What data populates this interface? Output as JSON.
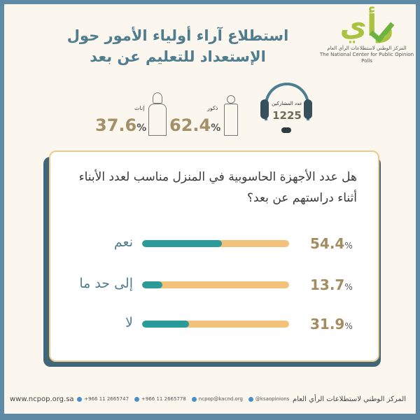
{
  "logo": {
    "mark": "رأي",
    "name_ar": "المركز الوطني لاستطلاعات الرأي العام",
    "name_en": "The National Center for Public Opinion Polls"
  },
  "title": {
    "line1": "استطلاع آراء أولياء الأمور حول",
    "line2": "الإستعداد للتعليم عن بعد"
  },
  "participants": {
    "label": "عدد المشاركين",
    "count": "1225",
    "icon": "headset-icon"
  },
  "gender": {
    "male": {
      "label": "ذكور",
      "value": "62.4",
      "unit": "%"
    },
    "female": {
      "label": "إناث",
      "value": "37.6",
      "unit": "%"
    }
  },
  "colors": {
    "accent_teal": "#2a9b99",
    "accent_orange": "#f3c27a",
    "title": "#4f7d8e",
    "frame": "#5f8aa6"
  },
  "question": "هل عدد الأجهزة الحاسوبية في المنزل مناسب لعدد الأبناء أثناء دراستهم عن بعد؟",
  "answers": [
    {
      "label": "نعم",
      "value": "54.4",
      "unit": "%",
      "percent": 54.4
    },
    {
      "label": "إلى حد ما",
      "value": "13.7",
      "unit": "%",
      "percent": 13.7
    },
    {
      "label": "لا",
      "value": "31.9",
      "unit": "%",
      "percent": 31.9
    }
  ],
  "footer": {
    "website": "www.ncpop.org.sa",
    "phone1": "+966 11 2665747",
    "phone2": "+966 11 2665778",
    "email": "ncpop@kacnd.org",
    "twitter": "@ksaopinions",
    "org": "المركز الوطني لاستطلاعات الرأي العام"
  }
}
